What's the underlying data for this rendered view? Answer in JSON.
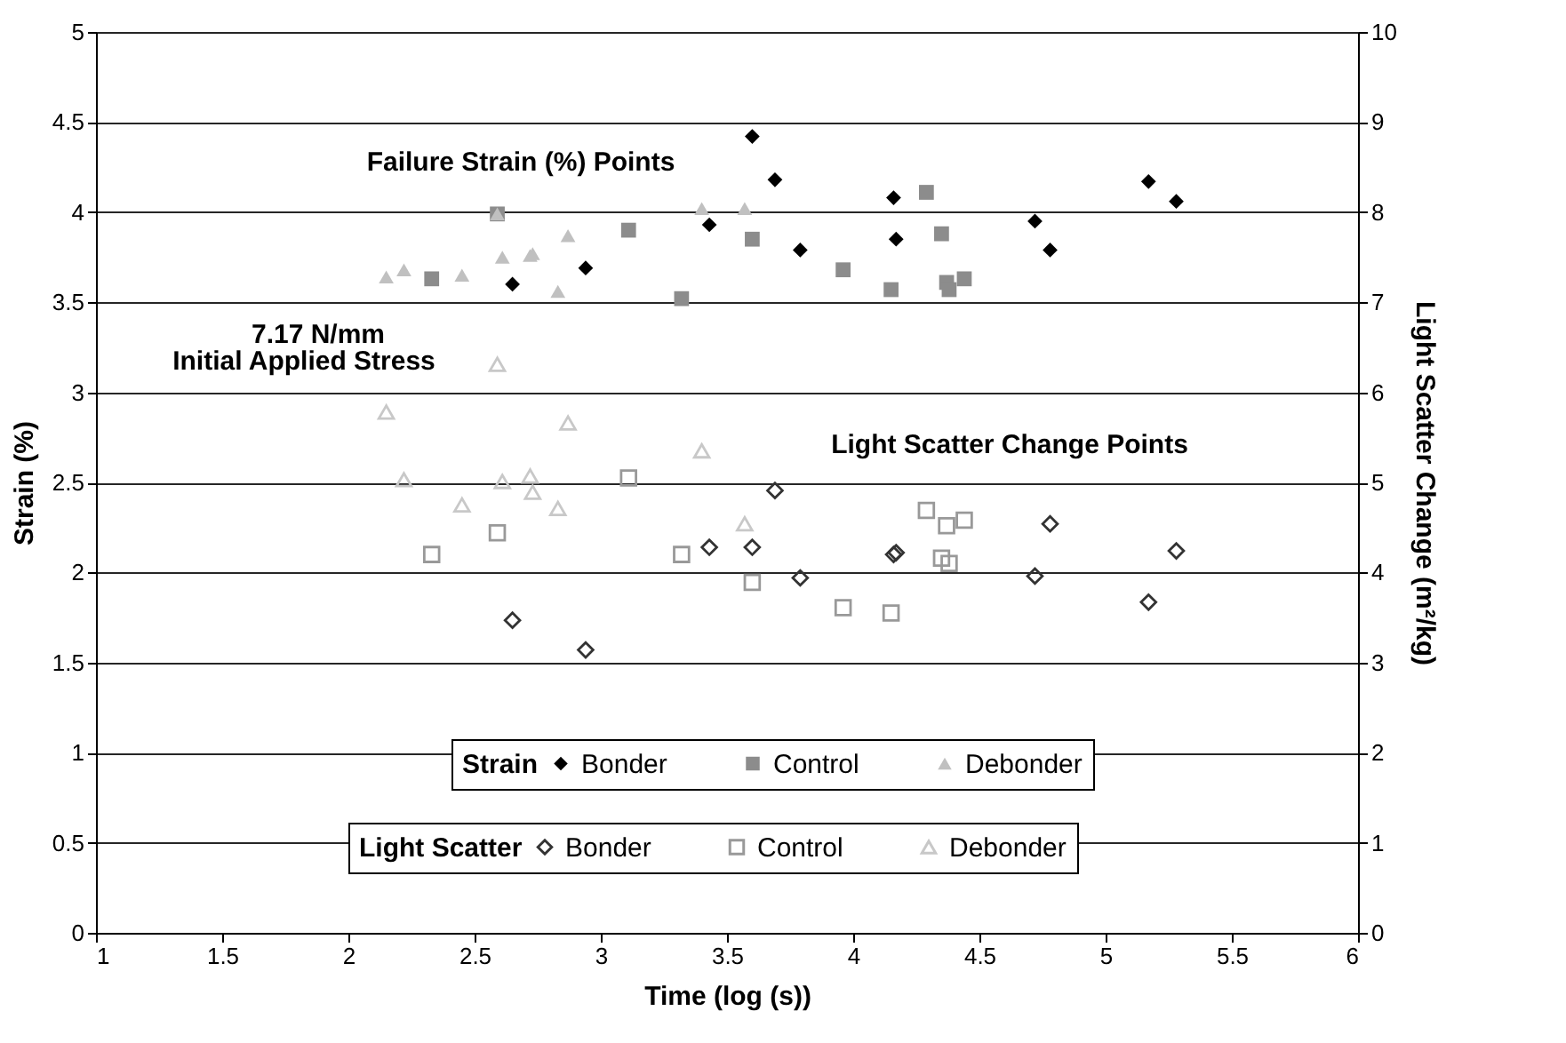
{
  "chart_data": {
    "type": "scatter",
    "xlabel": "Time (log (s))",
    "ylabel": "Strain (%)",
    "y2label": "Light Scatter Change (m²/kg)",
    "legend_title": [
      "Strain",
      "Light Scatter"
    ],
    "legend": "bottom",
    "grid": "y",
    "xlim": [
      1,
      6
    ],
    "xticks": [
      1,
      1.5,
      2,
      2.5,
      3,
      3.5,
      4,
      4.5,
      5,
      5.5,
      6
    ],
    "ylim": [
      0,
      5
    ],
    "yticks": [
      0,
      0.5,
      1,
      1.5,
      2,
      2.5,
      3,
      3.5,
      4,
      4.5,
      5
    ],
    "y2lim": [
      0,
      10
    ],
    "y2ticks": [
      0,
      1,
      2,
      3,
      4,
      5,
      6,
      7,
      8,
      9,
      10
    ],
    "annotations": [
      "Failure Strain (%) Points",
      "7.17 N/mm",
      "Initial Applied Stress",
      "Light Scatter Change Points"
    ],
    "series": [
      {
        "name": "Bonder",
        "color": "#000000",
        "marker": "diamond",
        "x": [
          2.65,
          2.94,
          3.43,
          3.6,
          3.69,
          3.79,
          4.16,
          4.17,
          4.72,
          4.78,
          5.17,
          5.28
        ],
        "values": [
          3.6,
          3.69,
          3.93,
          4.42,
          4.18,
          3.79,
          4.08,
          3.85,
          3.95,
          3.79,
          4.17,
          4.06
        ]
      },
      {
        "name": "Control",
        "color": "#8c8c8c",
        "marker": "square",
        "x": [
          2.33,
          2.59,
          3.11,
          3.32,
          3.6,
          3.96,
          4.15,
          4.29,
          4.35,
          4.37,
          4.38,
          4.44
        ],
        "values": [
          3.63,
          3.99,
          3.9,
          3.52,
          3.85,
          3.68,
          3.57,
          4.11,
          3.88,
          3.61,
          3.57,
          3.63
        ]
      },
      {
        "name": "Debonder",
        "color": "#c0c0c0",
        "marker": "triangle",
        "x": [
          2.15,
          2.22,
          2.45,
          2.61,
          2.72,
          2.73,
          2.87,
          2.83,
          2.59,
          3.4,
          3.57
        ],
        "values": [
          3.64,
          3.68,
          3.65,
          3.75,
          3.76,
          3.77,
          3.87,
          3.56,
          3.99,
          4.02,
          4.02
        ]
      },
      {
        "name": "Bonder",
        "color": "#333333",
        "marker": "diamond",
        "axis": "y2",
        "x": [
          2.65,
          2.94,
          3.43,
          3.6,
          3.69,
          3.79,
          4.16,
          4.17,
          4.72,
          4.78,
          5.17,
          5.28
        ],
        "values": [
          3.47,
          3.14,
          4.28,
          4.28,
          4.91,
          3.94,
          4.2,
          4.22,
          3.96,
          4.54,
          3.67,
          4.24
        ]
      },
      {
        "name": "Control",
        "color": "#999999",
        "marker": "square",
        "axis": "y2",
        "x": [
          2.33,
          2.59,
          3.11,
          3.32,
          3.6,
          3.96,
          4.15,
          4.29,
          4.35,
          4.37,
          4.38,
          4.44
        ],
        "values": [
          4.2,
          4.44,
          5.05,
          4.2,
          3.89,
          3.61,
          3.55,
          4.69,
          4.16,
          4.52,
          4.1,
          4.58
        ]
      },
      {
        "name": "Debonder",
        "color": "#c8c8c8",
        "marker": "triangle",
        "axis": "y2",
        "x": [
          2.15,
          2.22,
          2.45,
          2.61,
          2.72,
          2.73,
          2.87,
          2.83,
          2.59,
          3.4,
          3.57
        ],
        "values": [
          5.78,
          5.03,
          4.75,
          5.01,
          5.07,
          4.89,
          5.66,
          4.71,
          6.31,
          5.35,
          4.54
        ]
      }
    ]
  }
}
